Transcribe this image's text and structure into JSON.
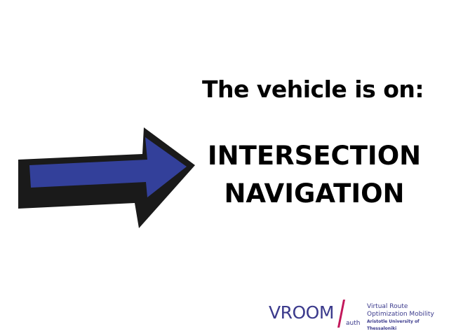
{
  "heading": "The vehicle is on:",
  "status": {
    "line1": "INTERSECTION",
    "line2": "NAVIGATION"
  },
  "arrow": {
    "icon": "right-arrow-icon",
    "fill_color": "#33409a",
    "outline_color": "#1a1a1a"
  },
  "logo": {
    "name": "VROOM",
    "suffix": "auth",
    "tagline_line1": "Virtual Route",
    "tagline_line2": "Optimization Mobility",
    "institution": "Aristotle University of Thessaloniki",
    "text_color": "#3b3a8c",
    "slash_color": "#c2185b"
  }
}
